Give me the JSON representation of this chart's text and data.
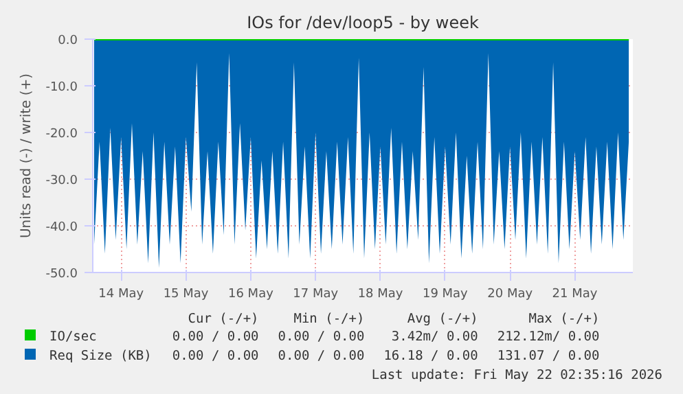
{
  "chart_data": {
    "type": "area",
    "title": "IOs for /dev/loop5 - by week",
    "ylabel": "Units read (-) / write (+)",
    "xlim": [
      "2026-05-13T19:30",
      "2026-05-22T03:30"
    ],
    "xticks": [
      {
        "value": "2026-05-14T06:00",
        "label": "14 May"
      },
      {
        "value": "2026-05-15T06:00",
        "label": "15 May"
      },
      {
        "value": "2026-05-16T06:00",
        "label": "16 May"
      },
      {
        "value": "2026-05-17T06:00",
        "label": "17 May"
      },
      {
        "value": "2026-05-18T06:00",
        "label": "18 May"
      },
      {
        "value": "2026-05-19T06:00",
        "label": "19 May"
      },
      {
        "value": "2026-05-20T06:00",
        "label": "20 May"
      },
      {
        "value": "2026-05-21T06:00",
        "label": "21 May"
      }
    ],
    "ylim": [
      -50,
      0
    ],
    "yticks": [
      {
        "value": -50,
        "label": "-50.0"
      },
      {
        "value": -40,
        "label": "-40.0"
      },
      {
        "value": -30,
        "label": "-30.0"
      },
      {
        "value": -20,
        "label": "-20.0"
      },
      {
        "value": -10,
        "label": "-10.0"
      },
      {
        "value": 0,
        "label": "0.0"
      }
    ],
    "grid": true,
    "legend": "bottom",
    "series": [
      {
        "name": "IO/sec",
        "type": "line",
        "color": "#00cc00",
        "x": [
          "2026-05-13T20:00",
          "2026-05-22T02:00"
        ],
        "values": [
          0,
          0
        ]
      },
      {
        "name": "Req Size (KB)",
        "color": "#0066b3",
        "x": [
          "2026-05-13T20:00",
          "2026-05-13T22:00",
          "2026-05-14T00:00",
          "2026-05-14T02:00",
          "2026-05-14T04:00",
          "2026-05-14T06:00",
          "2026-05-14T08:00",
          "2026-05-14T10:00",
          "2026-05-14T12:00",
          "2026-05-14T14:00",
          "2026-05-14T16:00",
          "2026-05-14T18:00",
          "2026-05-14T20:00",
          "2026-05-14T22:00",
          "2026-05-15T00:00",
          "2026-05-15T02:00",
          "2026-05-15T04:00",
          "2026-05-15T06:00",
          "2026-05-15T08:00",
          "2026-05-15T10:00",
          "2026-05-15T12:00",
          "2026-05-15T14:00",
          "2026-05-15T16:00",
          "2026-05-15T18:00",
          "2026-05-15T20:00",
          "2026-05-15T22:00",
          "2026-05-16T00:00",
          "2026-05-16T02:00",
          "2026-05-16T04:00",
          "2026-05-16T06:00",
          "2026-05-16T08:00",
          "2026-05-16T10:00",
          "2026-05-16T12:00",
          "2026-05-16T14:00",
          "2026-05-16T16:00",
          "2026-05-16T18:00",
          "2026-05-16T20:00",
          "2026-05-16T22:00",
          "2026-05-17T00:00",
          "2026-05-17T02:00",
          "2026-05-17T04:00",
          "2026-05-17T06:00",
          "2026-05-17T08:00",
          "2026-05-17T10:00",
          "2026-05-17T12:00",
          "2026-05-17T14:00",
          "2026-05-17T16:00",
          "2026-05-17T18:00",
          "2026-05-17T20:00",
          "2026-05-17T22:00",
          "2026-05-18T00:00",
          "2026-05-18T02:00",
          "2026-05-18T04:00",
          "2026-05-18T06:00",
          "2026-05-18T08:00",
          "2026-05-18T10:00",
          "2026-05-18T12:00",
          "2026-05-18T14:00",
          "2026-05-18T16:00",
          "2026-05-18T18:00",
          "2026-05-18T20:00",
          "2026-05-18T22:00",
          "2026-05-19T00:00",
          "2026-05-19T02:00",
          "2026-05-19T04:00",
          "2026-05-19T06:00",
          "2026-05-19T08:00",
          "2026-05-19T10:00",
          "2026-05-19T12:00",
          "2026-05-19T14:00",
          "2026-05-19T16:00",
          "2026-05-19T18:00",
          "2026-05-19T20:00",
          "2026-05-19T22:00",
          "2026-05-20T00:00",
          "2026-05-20T02:00",
          "2026-05-20T04:00",
          "2026-05-20T06:00",
          "2026-05-20T08:00",
          "2026-05-20T10:00",
          "2026-05-20T12:00",
          "2026-05-20T14:00",
          "2026-05-20T16:00",
          "2026-05-20T18:00",
          "2026-05-20T20:00",
          "2026-05-20T22:00",
          "2026-05-21T00:00",
          "2026-05-21T02:00",
          "2026-05-21T04:00",
          "2026-05-21T06:00",
          "2026-05-21T08:00",
          "2026-05-21T10:00",
          "2026-05-21T12:00",
          "2026-05-21T14:00",
          "2026-05-21T16:00",
          "2026-05-21T18:00",
          "2026-05-21T20:00",
          "2026-05-21T22:00",
          "2026-05-22T00:00",
          "2026-05-22T02:00"
        ],
        "values": [
          -44,
          -22,
          -46,
          -19,
          -43,
          -21,
          -45,
          -18,
          -44,
          -24,
          -48,
          -20,
          -49,
          -22,
          -44,
          -23,
          -48,
          -21,
          -37,
          -5,
          -44,
          -24,
          -46,
          -22,
          -42,
          -3,
          -44,
          -18,
          -41,
          -21,
          -47,
          -26,
          -45,
          -24,
          -46,
          -22,
          -47,
          -5,
          -44,
          -23,
          -47,
          -20,
          -46,
          -24,
          -45,
          -22,
          -44,
          -21,
          -46,
          -4,
          -47,
          -20,
          -45,
          -23,
          -44,
          -19,
          -46,
          -22,
          -45,
          -24,
          -43,
          -6,
          -48,
          -21,
          -46,
          -23,
          -44,
          -20,
          -47,
          -25,
          -46,
          -22,
          -45,
          -3,
          -44,
          -24,
          -45,
          -23,
          -43,
          -20,
          -47,
          -22,
          -44,
          -21,
          -46,
          -5,
          -48,
          -22,
          -45,
          -24,
          -43,
          -21,
          -46,
          -23,
          -44,
          -22,
          -45,
          -20,
          -43,
          -22
        ]
      }
    ],
    "annotations": [
      "Cur (-/+)",
      "Min (-/+)",
      "Avg (-/+)",
      "Max (-/+)",
      "0.00 / 0.00",
      "0.00 / 0.00",
      "3.42m/ 0.00",
      "212.12m/ 0.00",
      "0.00 / 0.00",
      "0.00 / 0.00",
      "16.18 / 0.00",
      "131.07 / 0.00",
      "Last update: Fri May 22 02:35:16 2026"
    ]
  }
}
